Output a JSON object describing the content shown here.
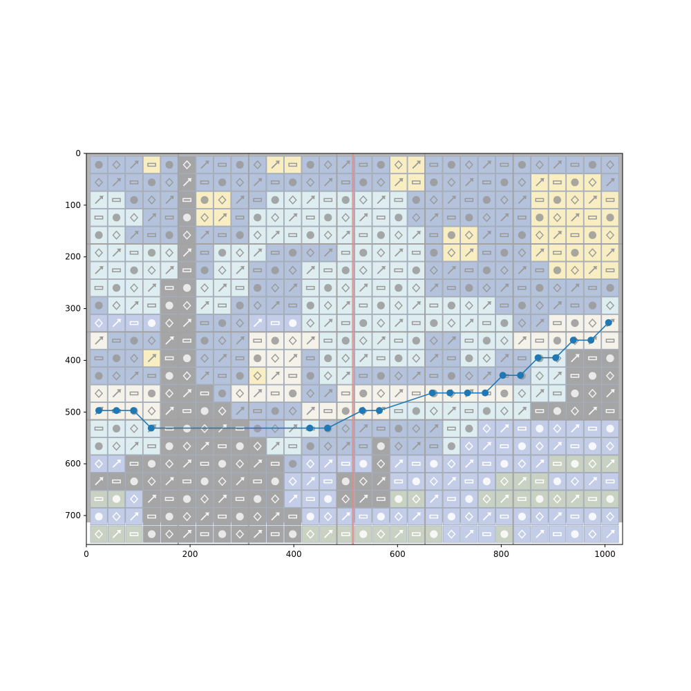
{
  "chart_data": {
    "type": "line",
    "background": "tile-grid image",
    "title": "",
    "xlabel": "",
    "ylabel": "",
    "xlim": [
      0,
      1034
    ],
    "ylim": [
      756,
      0
    ],
    "y_inverted": true,
    "grid": false,
    "x_ticks": [
      0,
      200,
      400,
      600,
      800,
      1000
    ],
    "y_ticks": [
      0,
      100,
      200,
      300,
      400,
      500,
      600,
      700
    ],
    "series": [
      {
        "color": "#1f77b4",
        "marker": "circle",
        "x": [
          24,
          58,
          91,
          125,
          431,
          465,
          532,
          565,
          667,
          701,
          735,
          769,
          803,
          837,
          871,
          905,
          939,
          973,
          1007
        ],
        "y": [
          497,
          497,
          497,
          531,
          531,
          531,
          497,
          497,
          463,
          463,
          463,
          463,
          429,
          429,
          395,
          395,
          361,
          361,
          327
        ]
      }
    ],
    "annotations": [
      {
        "kind": "vertical-line",
        "x": 514,
        "color": "#e88a8a"
      }
    ],
    "colors": {
      "tile_blue": "#9fb3d1",
      "tile_light": "#d4e8ec",
      "tile_yellow": "#f6eab0",
      "tile_cream": "#f3efe3",
      "tile_gray": "#8c8c8c",
      "tile_periwinkle": "#b4bfe0",
      "tile_sage": "#b9c4b1"
    }
  }
}
